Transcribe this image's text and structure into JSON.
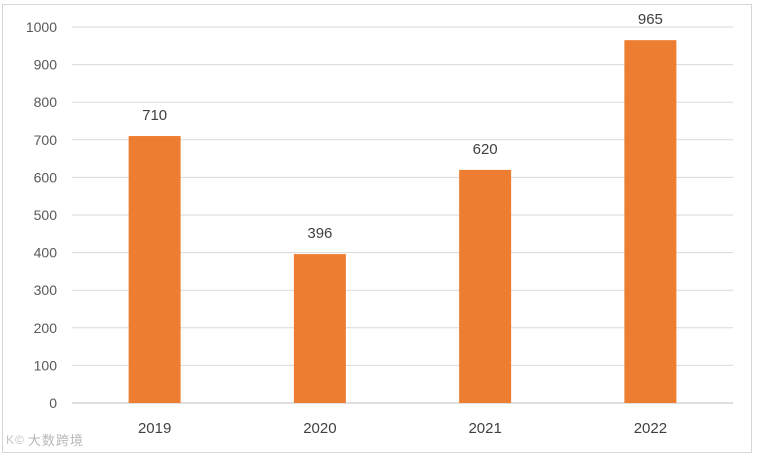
{
  "chart_data": {
    "type": "bar",
    "title": "",
    "xlabel": "",
    "ylabel": "",
    "categories": [
      "2019",
      "2020",
      "2021",
      "2022"
    ],
    "values": [
      710,
      396,
      620,
      965
    ],
    "data_labels": [
      "710",
      "396",
      "620",
      "965"
    ],
    "ylim": [
      0,
      1000
    ],
    "yticks": [
      0,
      100,
      200,
      300,
      400,
      500,
      600,
      700,
      800,
      900,
      1000
    ],
    "bar_color": "#ED7D31",
    "grid": true,
    "grid_color": "#D9D9D9",
    "legend": "none"
  },
  "watermark": {
    "mark": "K©",
    "text": "大数跨境"
  }
}
